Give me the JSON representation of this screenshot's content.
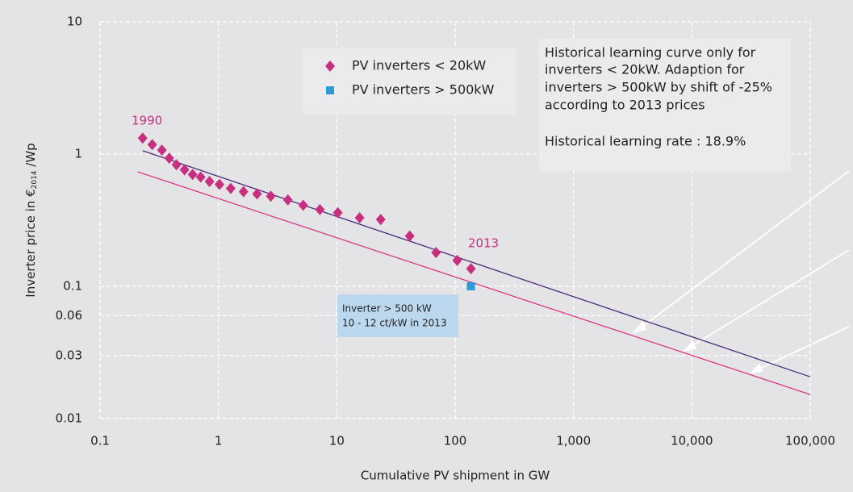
{
  "chart_data": {
    "type": "scatter",
    "x_label": "Cumulative PV shipment in GW",
    "y_label": [
      "Inverter price in €",
      "2014",
      " /Wp"
    ],
    "log_x": true,
    "log_y": true,
    "grid": true,
    "xlim": [
      0.1,
      100000
    ],
    "xticks": [
      0.1,
      1,
      10,
      100,
      {
        "value": 1000,
        "label": "1,000"
      },
      {
        "value": 10000,
        "label": "10,000"
      },
      {
        "value": 100000,
        "label": "100,000"
      }
    ],
    "ylim": [
      0.01,
      10
    ],
    "yticks": [
      0.01,
      0.03,
      0.06,
      0.1,
      1,
      10
    ],
    "series": [
      {
        "name": "PV inverters < 20kW",
        "color": "#c8307f",
        "marker": "diamond",
        "x": [
          0.229,
          0.276,
          0.333,
          0.384,
          0.442,
          0.517,
          0.605,
          0.708,
          0.841,
          1.02,
          1.27,
          1.63,
          2.12,
          2.77,
          3.86,
          5.2,
          7.2,
          10.2,
          15.6,
          23.5,
          41.3,
          69,
          104,
          136
        ],
        "values": [
          1.32,
          1.18,
          1.07,
          0.93,
          0.83,
          0.76,
          0.7,
          0.67,
          0.62,
          0.59,
          0.55,
          0.52,
          0.5,
          0.48,
          0.45,
          0.41,
          0.38,
          0.36,
          0.33,
          0.32,
          0.24,
          0.18,
          0.157,
          0.136
        ]
      },
      {
        "name": "PV inverters > 500kW",
        "color": "#2a9ad8",
        "marker": "square",
        "x": [
          136
        ],
        "values": [
          0.1
        ]
      }
    ],
    "lines": [
      {
        "color": "#4a2a7a",
        "x": [
          0.229,
          100000
        ],
        "values": [
          1.06,
          0.0207
        ]
      },
      {
        "color": "#d83a86",
        "x": [
          0.208,
          100000
        ],
        "values": [
          0.734,
          0.0152
        ]
      }
    ],
    "annotations": {
      "start_year": "1990",
      "end_year": "2013",
      "note_lines": [
        "Historical learning curve only for",
        "inverters < 20kW. Adaption for",
        "inverters > 500kW by shift of -25%",
        "according to 2013 prices"
      ],
      "rate": "Historical learning rate : 18.9%",
      "callout": [
        "Inverter > 500 kW",
        "10 - 12 ct/kW in 2013"
      ]
    }
  }
}
